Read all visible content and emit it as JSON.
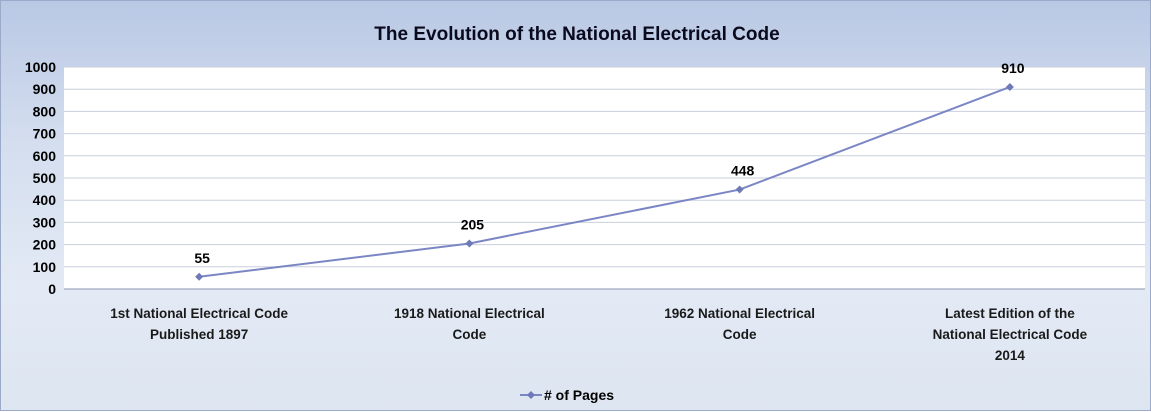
{
  "chart_data": {
    "type": "line",
    "title": "The Evolution of the National Electrical Code",
    "categories": [
      [
        "1st National Electrical Code",
        "Published 1897"
      ],
      [
        "1918 National Electrical",
        "Code"
      ],
      [
        "1962 National Electrical",
        "Code"
      ],
      [
        "Latest Edition of the",
        "National Electrical Code",
        "2014"
      ]
    ],
    "series": [
      {
        "name": "# of Pages",
        "values": [
          55,
          205,
          448,
          910
        ],
        "color": "#7b86c4"
      }
    ],
    "ylim": [
      0,
      1000
    ],
    "yticks": [
      0,
      100,
      200,
      300,
      400,
      500,
      600,
      700,
      800,
      900,
      1000
    ],
    "grid": true,
    "data_labels": true,
    "legend_position": "bottom",
    "colors": {
      "plot_background": "#ffffff",
      "gridline": "#c9cfdd",
      "line": "#7b86c4",
      "marker": "#6e79b8"
    }
  }
}
